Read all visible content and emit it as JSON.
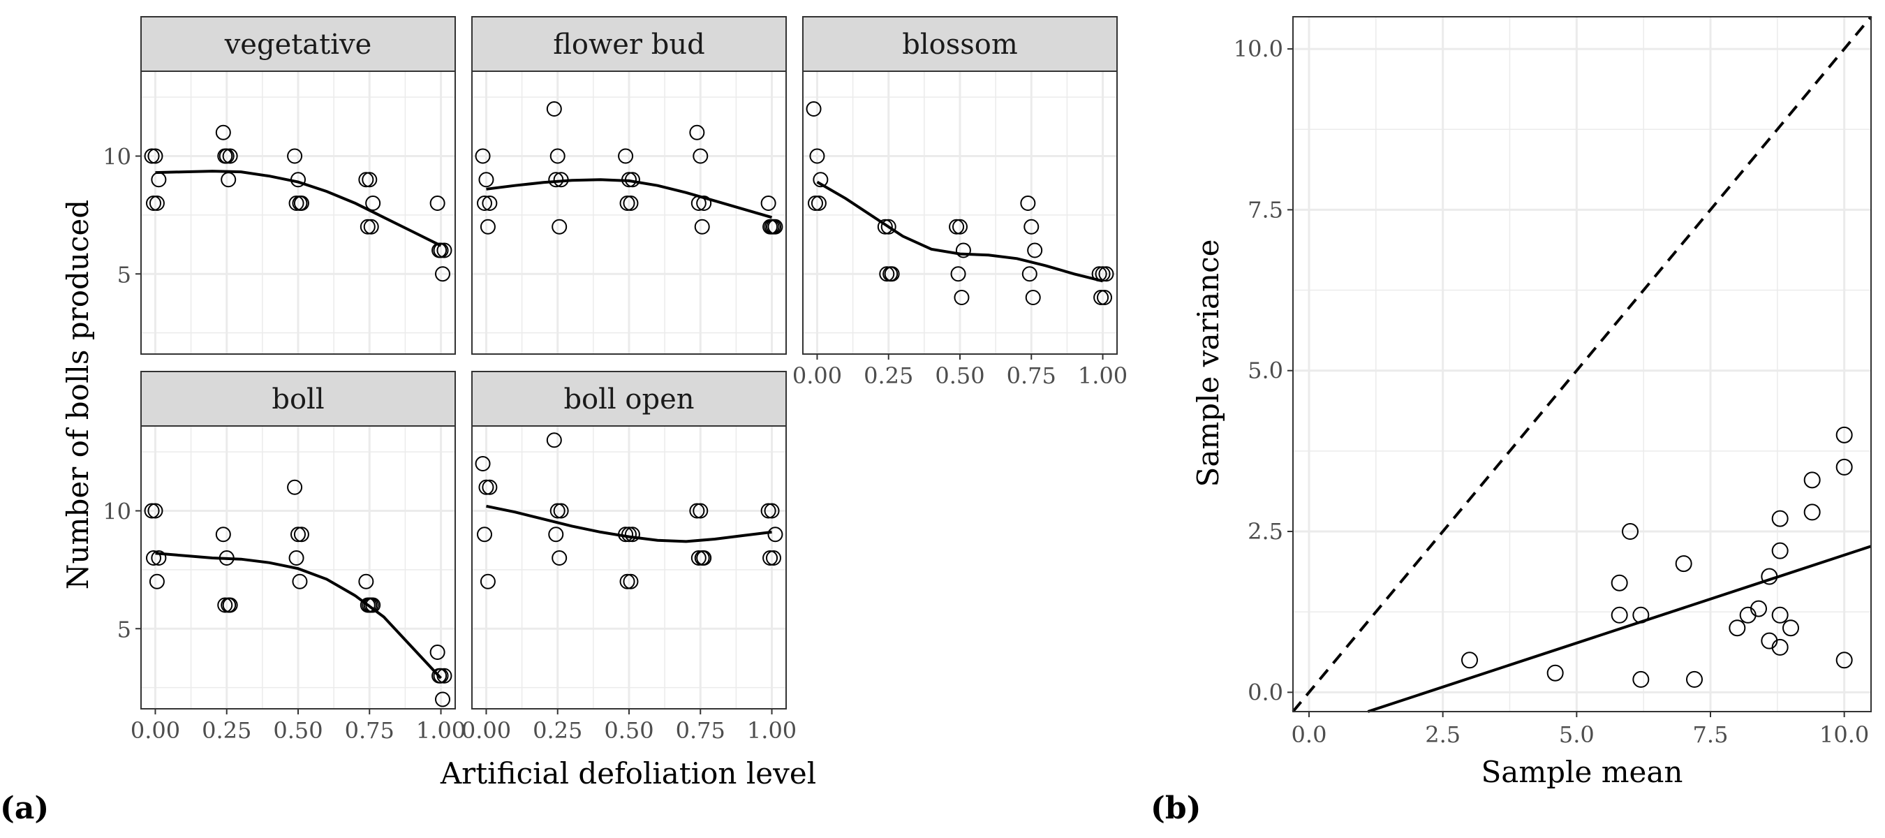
{
  "figure": {
    "label_a": "(a)",
    "label_b": "(b)"
  },
  "panel_a": {
    "xlabel": "Artificial defoliation level",
    "ylabel": "Number of bolls produced",
    "xticks": [
      "0.00",
      "0.25",
      "0.50",
      "0.75",
      "1.00"
    ],
    "yticks": [
      "5",
      "10"
    ]
  },
  "panel_b": {
    "xlabel": "Sample mean",
    "ylabel": "Sample variance",
    "xticks": [
      "0.0",
      "2.5",
      "5.0",
      "7.5",
      "10.0"
    ],
    "yticks": [
      "0.0",
      "2.5",
      "5.0",
      "7.5",
      "10.0"
    ]
  },
  "colors": {
    "strip": "#d9d9d9",
    "grid": "#ebebeb",
    "line": "#000000",
    "point_fill": "#ffffff"
  },
  "chart_data": [
    {
      "type": "scatter",
      "xlabel": "Artificial defoliation level",
      "ylabel": "Number of bolls produced",
      "xlim": [
        -0.05,
        1.05
      ],
      "ylim": [
        1.6,
        13.6
      ],
      "grid": true,
      "facets": [
        {
          "name": "vegetative",
          "points": [
            [
              0,
              10
            ],
            [
              0,
              10
            ],
            [
              0,
              9
            ],
            [
              0,
              8
            ],
            [
              0,
              8
            ],
            [
              0.25,
              11
            ],
            [
              0.25,
              10
            ],
            [
              0.25,
              10
            ],
            [
              0.25,
              10
            ],
            [
              0.25,
              9
            ],
            [
              0.5,
              10
            ],
            [
              0.5,
              9
            ],
            [
              0.5,
              8
            ],
            [
              0.5,
              8
            ],
            [
              0.5,
              8
            ],
            [
              0.75,
              9
            ],
            [
              0.75,
              9
            ],
            [
              0.75,
              8
            ],
            [
              0.75,
              7
            ],
            [
              0.75,
              7
            ],
            [
              1,
              8
            ],
            [
              1,
              6
            ],
            [
              1,
              6
            ],
            [
              1,
              6
            ],
            [
              1,
              5
            ]
          ],
          "smooth": [
            [
              0,
              9.3
            ],
            [
              0.1,
              9.33
            ],
            [
              0.2,
              9.36
            ],
            [
              0.3,
              9.33
            ],
            [
              0.4,
              9.15
            ],
            [
              0.5,
              8.9
            ],
            [
              0.6,
              8.5
            ],
            [
              0.7,
              8.0
            ],
            [
              0.8,
              7.4
            ],
            [
              0.9,
              6.8
            ],
            [
              1,
              6.2
            ]
          ]
        },
        {
          "name": "flower bud",
          "points": [
            [
              0,
              10
            ],
            [
              0,
              9
            ],
            [
              0,
              8
            ],
            [
              0,
              8
            ],
            [
              0,
              7
            ],
            [
              0.25,
              12
            ],
            [
              0.25,
              10
            ],
            [
              0.25,
              9
            ],
            [
              0.25,
              9
            ],
            [
              0.25,
              7
            ],
            [
              0.5,
              10
            ],
            [
              0.5,
              9
            ],
            [
              0.5,
              9
            ],
            [
              0.5,
              8
            ],
            [
              0.5,
              8
            ],
            [
              0.75,
              11
            ],
            [
              0.75,
              10
            ],
            [
              0.75,
              8
            ],
            [
              0.75,
              8
            ],
            [
              0.75,
              7
            ],
            [
              1,
              8
            ],
            [
              1,
              7
            ],
            [
              1,
              7
            ],
            [
              1,
              7
            ],
            [
              1,
              7
            ]
          ],
          "smooth": [
            [
              0,
              8.6
            ],
            [
              0.1,
              8.75
            ],
            [
              0.2,
              8.88
            ],
            [
              0.3,
              8.97
            ],
            [
              0.4,
              9.0
            ],
            [
              0.5,
              8.95
            ],
            [
              0.6,
              8.75
            ],
            [
              0.7,
              8.45
            ],
            [
              0.8,
              8.1
            ],
            [
              0.9,
              7.75
            ],
            [
              1,
              7.4
            ]
          ]
        },
        {
          "name": "blossom",
          "points": [
            [
              0,
              12
            ],
            [
              0,
              10
            ],
            [
              0,
              9
            ],
            [
              0,
              8
            ],
            [
              0,
              8
            ],
            [
              0.25,
              7
            ],
            [
              0.25,
              7
            ],
            [
              0.25,
              5
            ],
            [
              0.25,
              5
            ],
            [
              0.25,
              5
            ],
            [
              0.5,
              7
            ],
            [
              0.5,
              7
            ],
            [
              0.5,
              6
            ],
            [
              0.5,
              5
            ],
            [
              0.5,
              4
            ],
            [
              0.75,
              8
            ],
            [
              0.75,
              7
            ],
            [
              0.75,
              6
            ],
            [
              0.75,
              5
            ],
            [
              0.75,
              4
            ],
            [
              1,
              5
            ],
            [
              1,
              5
            ],
            [
              1,
              5
            ],
            [
              1,
              4
            ],
            [
              1,
              4
            ]
          ],
          "smooth": [
            [
              0,
              8.9
            ],
            [
              0.1,
              8.2
            ],
            [
              0.2,
              7.4
            ],
            [
              0.3,
              6.6
            ],
            [
              0.4,
              6.05
            ],
            [
              0.5,
              5.85
            ],
            [
              0.6,
              5.8
            ],
            [
              0.7,
              5.65
            ],
            [
              0.8,
              5.35
            ],
            [
              0.9,
              5.0
            ],
            [
              1,
              4.7
            ]
          ]
        },
        {
          "name": "boll",
          "points": [
            [
              0,
              10
            ],
            [
              0,
              10
            ],
            [
              0,
              8
            ],
            [
              0,
              8
            ],
            [
              0,
              7
            ],
            [
              0.25,
              9
            ],
            [
              0.25,
              8
            ],
            [
              0.25,
              6
            ],
            [
              0.25,
              6
            ],
            [
              0.25,
              6
            ],
            [
              0.5,
              11
            ],
            [
              0.5,
              9
            ],
            [
              0.5,
              9
            ],
            [
              0.5,
              8
            ],
            [
              0.5,
              7
            ],
            [
              0.75,
              7
            ],
            [
              0.75,
              6
            ],
            [
              0.75,
              6
            ],
            [
              0.75,
              6
            ],
            [
              0.75,
              6
            ],
            [
              1,
              4
            ],
            [
              1,
              3
            ],
            [
              1,
              3
            ],
            [
              1,
              3
            ],
            [
              1,
              2
            ]
          ],
          "smooth": [
            [
              0,
              8.2
            ],
            [
              0.1,
              8.1
            ],
            [
              0.2,
              8.0
            ],
            [
              0.3,
              7.95
            ],
            [
              0.4,
              7.8
            ],
            [
              0.5,
              7.55
            ],
            [
              0.6,
              7.1
            ],
            [
              0.7,
              6.4
            ],
            [
              0.8,
              5.5
            ],
            [
              0.9,
              4.2
            ],
            [
              1,
              2.9
            ]
          ]
        },
        {
          "name": "boll open",
          "points": [
            [
              0,
              12
            ],
            [
              0,
              11
            ],
            [
              0,
              11
            ],
            [
              0,
              9
            ],
            [
              0,
              7
            ],
            [
              0.25,
              13
            ],
            [
              0.25,
              10
            ],
            [
              0.25,
              10
            ],
            [
              0.25,
              9
            ],
            [
              0.25,
              8
            ],
            [
              0.5,
              9
            ],
            [
              0.5,
              9
            ],
            [
              0.5,
              9
            ],
            [
              0.5,
              7
            ],
            [
              0.5,
              7
            ],
            [
              0.75,
              10
            ],
            [
              0.75,
              10
            ],
            [
              0.75,
              8
            ],
            [
              0.75,
              8
            ],
            [
              0.75,
              8
            ],
            [
              1,
              10
            ],
            [
              1,
              10
            ],
            [
              1,
              9
            ],
            [
              1,
              8
            ],
            [
              1,
              8
            ]
          ],
          "smooth": [
            [
              0,
              10.2
            ],
            [
              0.1,
              9.95
            ],
            [
              0.2,
              9.65
            ],
            [
              0.3,
              9.35
            ],
            [
              0.4,
              9.1
            ],
            [
              0.5,
              8.9
            ],
            [
              0.6,
              8.75
            ],
            [
              0.7,
              8.7
            ],
            [
              0.8,
              8.8
            ],
            [
              0.9,
              8.95
            ],
            [
              1,
              9.1
            ]
          ]
        }
      ]
    },
    {
      "type": "scatter",
      "xlabel": "Sample mean",
      "ylabel": "Sample variance",
      "xlim": [
        -0.3,
        10.5
      ],
      "ylim": [
        -0.3,
        10.5
      ],
      "grid": true,
      "points": [
        [
          3.0,
          0.5
        ],
        [
          4.6,
          0.3
        ],
        [
          5.8,
          1.7
        ],
        [
          5.8,
          1.2
        ],
        [
          6.0,
          2.5
        ],
        [
          6.2,
          1.2
        ],
        [
          6.2,
          0.2
        ],
        [
          7.0,
          2.0
        ],
        [
          7.2,
          0.2
        ],
        [
          8.0,
          1.0
        ],
        [
          8.2,
          1.2
        ],
        [
          8.4,
          1.3
        ],
        [
          8.6,
          1.8
        ],
        [
          8.6,
          0.8
        ],
        [
          8.8,
          2.7
        ],
        [
          8.8,
          2.2
        ],
        [
          8.8,
          1.2
        ],
        [
          8.8,
          0.7
        ],
        [
          9.0,
          1.0
        ],
        [
          9.4,
          3.3
        ],
        [
          9.4,
          2.8
        ],
        [
          10.0,
          4.0
        ],
        [
          10.0,
          3.5
        ],
        [
          10.0,
          0.5
        ]
      ],
      "lines": [
        {
          "style": "dashed",
          "from": [
            -0.3,
            -0.3
          ],
          "to": [
            10.5,
            10.5
          ]
        },
        {
          "style": "solid",
          "from": [
            1.1,
            -0.3
          ],
          "to": [
            10.5,
            2.27
          ]
        }
      ]
    }
  ]
}
